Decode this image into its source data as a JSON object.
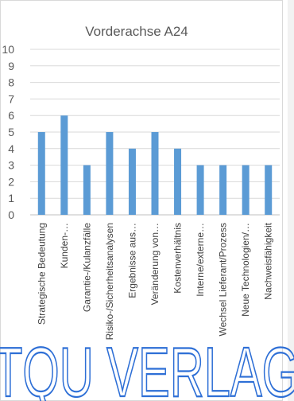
{
  "chart_data": {
    "type": "bar",
    "title": "Vorderachse A24",
    "categories": [
      "Strategische Bedeutung",
      "Kunden-…",
      "Garantie-/Kulanzfälle",
      "Risiko-/Sicherheitsanalysen",
      "Ergebnisse aus…",
      "Veränderung von…",
      "Kostenverhältnis",
      "Interne/externe…",
      "Wechsel Lieferant/Prozess",
      "Neue Technologien/…",
      "Nachweisfähigkeit"
    ],
    "values": [
      5,
      6,
      3,
      5,
      4,
      5,
      4,
      3,
      3,
      3,
      3
    ],
    "ylim": [
      0,
      10
    ],
    "yticks": [
      0,
      1,
      2,
      3,
      4,
      5,
      6,
      7,
      8,
      9,
      10
    ],
    "grid": true,
    "bar_color": "#5b9bd5"
  },
  "overlay_text": "TQU VERLAG"
}
